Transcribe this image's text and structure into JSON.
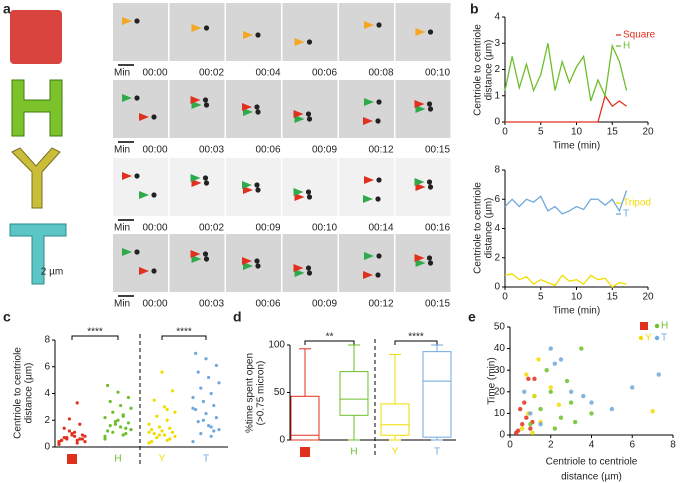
{
  "panel_a": {
    "label": "a",
    "scale_bar": "2 µm",
    "rows": [
      {
        "unit": "Min",
        "times": [
          "00:00",
          "00:02",
          "00:04",
          "00:06",
          "00:08",
          "00:10"
        ]
      },
      {
        "unit": "Min",
        "times": [
          "00:00",
          "00:03",
          "00:06",
          "00:09",
          "00:12",
          "00:15"
        ]
      },
      {
        "unit": "Min",
        "times": [
          "00:00",
          "00:02",
          "00:09",
          "00:10",
          "00:14",
          "00:16"
        ]
      },
      {
        "unit": "Min",
        "times": [
          "00:00",
          "00:03",
          "00:06",
          "00:09",
          "00:12",
          "00:15"
        ]
      }
    ]
  },
  "chart_data": [
    {
      "type": "line",
      "panel": "b",
      "ylabel": [
        "Centriole to centriole",
        "distance (µm)"
      ],
      "xlabel": [
        "Time (min)"
      ],
      "x": [
        0,
        1,
        2,
        3,
        4,
        5,
        6,
        7,
        8,
        9,
        10,
        11,
        12,
        13,
        14,
        15,
        16,
        17
      ],
      "xlim": [
        0,
        20
      ],
      "xticks": [
        0,
        5,
        10,
        15,
        20
      ],
      "ylim": [
        0,
        4
      ],
      "yticks": [
        0,
        1,
        2,
        3,
        4
      ],
      "legend": "upper right",
      "series": [
        {
          "name": "Square",
          "color": "#e0301e",
          "values": [
            0,
            0,
            0,
            0,
            0,
            0,
            0,
            0,
            0,
            0,
            0,
            0,
            0,
            0,
            1.0,
            0.6,
            0.8,
            0.6
          ]
        },
        {
          "name": "H",
          "color": "#6cbf2a",
          "values": [
            1.2,
            2.5,
            1.3,
            2.2,
            1.2,
            1.8,
            3.0,
            1.2,
            2.3,
            1.5,
            2.1,
            2.5,
            0.8,
            1.6,
            1.0,
            2.9,
            2.3,
            1.2
          ]
        }
      ]
    },
    {
      "type": "line",
      "ylabel": [
        "Centriole to centriole",
        "distance (µm)"
      ],
      "xlabel": [
        "Time (min)"
      ],
      "x": [
        0,
        1,
        2,
        3,
        4,
        5,
        6,
        7,
        8,
        9,
        10,
        11,
        12,
        13,
        14,
        15,
        16,
        17
      ],
      "xlim": [
        0,
        20
      ],
      "xticks": [
        0,
        5,
        10,
        15,
        20
      ],
      "ylim": [
        0,
        8
      ],
      "yticks": [
        0,
        2,
        4,
        6,
        8
      ],
      "legend": "upper right",
      "series": [
        {
          "name": "Tripod",
          "color": "#f2dc00",
          "values": [
            0.8,
            0.9,
            0.5,
            0.7,
            0.2,
            0.5,
            0.3,
            0.1,
            0.8,
            0.4,
            0.5,
            0.2,
            0.8,
            0.5,
            0.6,
            0.0,
            0.3,
            0.2
          ]
        },
        {
          "name": "T",
          "color": "#6fa8dc",
          "values": [
            5.5,
            6.0,
            5.5,
            6.0,
            5.8,
            6.2,
            5.2,
            5.5,
            5.0,
            5.2,
            5.5,
            5.3,
            6.0,
            6.0,
            5.6,
            6.0,
            5.2,
            6.6
          ]
        }
      ]
    },
    {
      "type": "strip",
      "panel": "c",
      "ylabel": [
        "Centriole to centriole",
        "distance (µm)"
      ],
      "categories": [
        null,
        "H",
        "Y",
        "T"
      ],
      "ylim": [
        0,
        8
      ],
      "yticks": [
        0,
        2,
        4,
        6,
        8
      ],
      "annotations": [
        "****",
        "****"
      ],
      "series": [
        {
          "color": "#e0301e",
          "values": [
            0.3,
            0.5,
            0.6,
            0.4,
            0.8,
            0.7,
            0.9,
            1.0,
            0.5,
            0.6,
            1.2,
            0.4,
            0.3,
            0.7,
            0.8,
            1.1,
            1.4,
            0.6,
            0.9,
            0.5,
            1.7,
            2.1,
            0.2,
            3.3
          ]
        },
        {
          "color": "#6cbf2a",
          "values": [
            0.6,
            0.9,
            1.1,
            1.3,
            1.5,
            1.6,
            1.8,
            2.0,
            1.2,
            1.4,
            1.7,
            2.2,
            2.4,
            2.6,
            2.9,
            3.1,
            3.4,
            3.7,
            4.1,
            4.6,
            1.0,
            1.9,
            0.8,
            2.3
          ]
        },
        {
          "color": "#f2dc00",
          "values": [
            0.3,
            0.5,
            0.7,
            0.8,
            0.9,
            1.0,
            1.1,
            1.2,
            1.3,
            0.6,
            1.5,
            1.7,
            2.0,
            2.3,
            2.6,
            3.0,
            3.5,
            4.2,
            5.6,
            0.4,
            1.4,
            0.9,
            1.1,
            2.8
          ]
        },
        {
          "color": "#6fa8dc",
          "values": [
            0.4,
            0.8,
            1.0,
            1.3,
            1.6,
            1.9,
            2.2,
            2.5,
            2.8,
            3.1,
            3.4,
            3.7,
            4.0,
            4.4,
            4.8,
            5.2,
            5.6,
            6.1,
            6.6,
            7.0,
            1.2,
            2.0,
            2.9,
            1.5
          ]
        }
      ]
    },
    {
      "type": "box",
      "panel": "d",
      "ylabel": [
        "%time spent open",
        "(>0.75 micron)"
      ],
      "categories": [
        null,
        "H",
        "Y",
        "T"
      ],
      "ylim": [
        0,
        100
      ],
      "yticks": [
        0,
        50,
        100
      ],
      "annotations": [
        "**",
        "****"
      ],
      "series": [
        {
          "color": "#e0301e",
          "min": 0,
          "q1": 0,
          "median": 5,
          "q3": 46,
          "max": 96
        },
        {
          "color": "#6cbf2a",
          "min": 0,
          "q1": 26,
          "median": 43,
          "q3": 72,
          "max": 100
        },
        {
          "color": "#f2dc00",
          "min": 0,
          "q1": 5,
          "median": 16,
          "q3": 38,
          "max": 90
        },
        {
          "color": "#6fa8dc",
          "min": 0,
          "q1": 3,
          "median": 62,
          "q3": 93,
          "max": 100
        }
      ]
    },
    {
      "type": "scatter",
      "panel": "e",
      "ylabel": [
        "Time (min)"
      ],
      "xlabel": [
        "Centriole to centriole",
        "distance (µm)"
      ],
      "xlim": [
        0,
        8
      ],
      "xticks": [
        0,
        2,
        4,
        6,
        8
      ],
      "ylim": [
        0,
        50
      ],
      "yticks": [
        0,
        10,
        20,
        30,
        40,
        50
      ],
      "series": [
        {
          "color": "#e0301e",
          "x": [
            0.4,
            0.6,
            0.8,
            1.0,
            0.5,
            0.9,
            1.2,
            0.3,
            0.7,
            1.1
          ],
          "values": [
            2,
            5,
            8,
            3,
            12,
            26,
            26,
            1,
            15,
            6
          ]
        },
        {
          "name": "H",
          "color": "#6cbf2a",
          "x": [
            1.0,
            1.5,
            2.0,
            2.5,
            3.0,
            3.5,
            1.8,
            2.2,
            4.0,
            1.2,
            2.8,
            3.2
          ],
          "values": [
            5,
            12,
            20,
            8,
            15,
            40,
            30,
            3,
            10,
            18,
            25,
            6
          ]
        },
        {
          "name": "Y",
          "color": "#f2dc00",
          "x": [
            0.6,
            0.9,
            1.2,
            1.5,
            2.0,
            2.4,
            0.8,
            1.1,
            7.0,
            1.4
          ],
          "values": [
            3,
            10,
            18,
            6,
            22,
            14,
            28,
            1,
            11,
            35
          ]
        },
        {
          "name": "T",
          "color": "#6fa8dc",
          "x": [
            1.0,
            2.0,
            2.5,
            3.0,
            4.0,
            5.0,
            6.0,
            7.3,
            3.6,
            1.5,
            2.2,
            0.7
          ],
          "values": [
            10,
            40,
            35,
            20,
            15,
            12,
            22,
            28,
            18,
            5,
            33,
            20
          ]
        }
      ]
    }
  ]
}
